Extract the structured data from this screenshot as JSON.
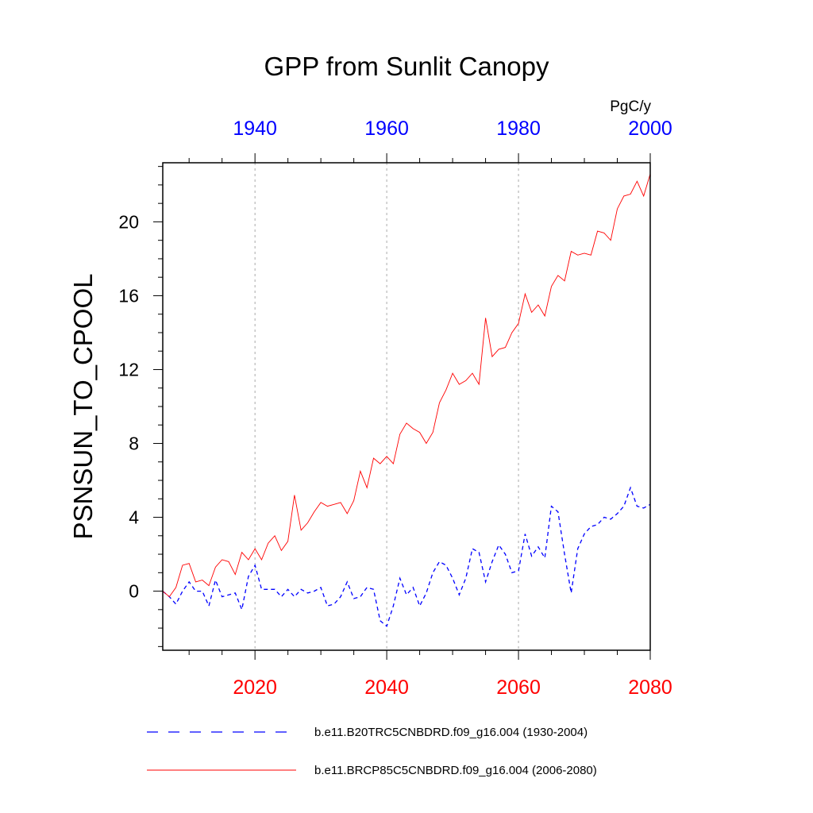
{
  "chart_data": {
    "type": "line",
    "title": "GPP from Sunlit Canopy",
    "ylabel": "PSNSUN_TO_CPOOL",
    "units": "PgC/y",
    "ylim": [
      -3.2,
      23.2
    ],
    "yticks": [
      0,
      4,
      8,
      12,
      16,
      20
    ],
    "bottom_axis": {
      "range": [
        2006,
        2080
      ],
      "ticks": [
        "2020",
        "2040",
        "2060",
        "2080"
      ],
      "tick_values": [
        2020,
        2040,
        2060,
        2080
      ],
      "color": "#ff0000"
    },
    "top_axis": {
      "range": [
        1926,
        2000
      ],
      "ticks": [
        "1940",
        "1960",
        "1980",
        "2000"
      ],
      "tick_values": [
        1940,
        1960,
        1980,
        2000
      ],
      "color": "#0000ff"
    },
    "vertical_gridlines": [
      2020,
      2040,
      2060
    ],
    "series": [
      {
        "name": "b.e11.B20TRC5CNBDRD.f09_g16.004 (1930-2004)",
        "axis": "top",
        "color": "#0000ff",
        "dash": "dashed",
        "x": [
          1926,
          1927,
          1928,
          1929,
          1930,
          1931,
          1932,
          1933,
          1934,
          1935,
          1936,
          1937,
          1938,
          1939,
          1940,
          1941,
          1942,
          1943,
          1944,
          1945,
          1946,
          1947,
          1948,
          1949,
          1950,
          1951,
          1952,
          1953,
          1954,
          1955,
          1956,
          1957,
          1958,
          1959,
          1960,
          1961,
          1962,
          1963,
          1964,
          1965,
          1966,
          1967,
          1968,
          1969,
          1970,
          1971,
          1972,
          1973,
          1974,
          1975,
          1976,
          1977,
          1978,
          1979,
          1980,
          1981,
          1982,
          1983,
          1984,
          1985,
          1986,
          1987,
          1988,
          1989,
          1990,
          1991,
          1992,
          1993,
          1994,
          1995,
          1996,
          1997,
          1998,
          1999,
          2000
        ],
        "values": [
          0.0,
          -0.3,
          -0.7,
          0.0,
          0.5,
          0.0,
          0.0,
          -0.8,
          0.6,
          -0.3,
          -0.2,
          -0.1,
          -1.0,
          0.8,
          1.4,
          0.1,
          0.1,
          0.1,
          -0.3,
          0.1,
          -0.3,
          0.1,
          -0.1,
          0.0,
          0.2,
          -0.8,
          -0.7,
          -0.3,
          0.5,
          -0.4,
          -0.3,
          0.2,
          0.1,
          -1.6,
          -1.9,
          -0.8,
          0.7,
          -0.2,
          0.2,
          -0.8,
          -0.1,
          1.0,
          1.6,
          1.4,
          0.7,
          -0.2,
          0.7,
          2.3,
          2.1,
          0.5,
          1.6,
          2.5,
          2.0,
          1.0,
          1.1,
          3.1,
          1.9,
          2.4,
          1.8,
          4.6,
          4.3,
          2.0,
          -0.1,
          2.3,
          3.1,
          3.5,
          3.6,
          4.0,
          3.9,
          4.2,
          4.6,
          5.6,
          4.6,
          4.5,
          4.7
        ]
      },
      {
        "name": "b.e11.BRCP85C5CNBDRD.f09_g16.004 (2006-2080)",
        "axis": "bottom",
        "color": "#ff0000",
        "dash": "solid",
        "x": [
          2006,
          2007,
          2008,
          2009,
          2010,
          2011,
          2012,
          2013,
          2014,
          2015,
          2016,
          2017,
          2018,
          2019,
          2020,
          2021,
          2022,
          2023,
          2024,
          2025,
          2026,
          2027,
          2028,
          2029,
          2030,
          2031,
          2032,
          2033,
          2034,
          2035,
          2036,
          2037,
          2038,
          2039,
          2040,
          2041,
          2042,
          2043,
          2044,
          2045,
          2046,
          2047,
          2048,
          2049,
          2050,
          2051,
          2052,
          2053,
          2054,
          2055,
          2056,
          2057,
          2058,
          2059,
          2060,
          2061,
          2062,
          2063,
          2064,
          2065,
          2066,
          2067,
          2068,
          2069,
          2070,
          2071,
          2072,
          2073,
          2074,
          2075,
          2076,
          2077,
          2078,
          2079,
          2080
        ],
        "values": [
          0.0,
          -0.3,
          0.2,
          1.4,
          1.5,
          0.5,
          0.6,
          0.3,
          1.3,
          1.7,
          1.6,
          0.9,
          2.1,
          1.7,
          2.3,
          1.7,
          2.6,
          3.0,
          2.2,
          2.7,
          5.2,
          3.3,
          3.7,
          4.3,
          4.8,
          4.6,
          4.7,
          4.8,
          4.2,
          4.9,
          6.5,
          5.6,
          7.2,
          6.9,
          7.3,
          6.9,
          8.5,
          9.1,
          8.8,
          8.6,
          8.0,
          8.6,
          10.2,
          10.9,
          11.8,
          11.2,
          11.4,
          11.8,
          11.2,
          14.8,
          12.7,
          13.1,
          13.2,
          14.0,
          14.5,
          16.1,
          15.1,
          15.5,
          14.9,
          16.5,
          17.1,
          16.8,
          18.4,
          18.2,
          18.3,
          18.2,
          19.5,
          19.4,
          19.0,
          20.7,
          21.4,
          21.5,
          22.2,
          21.4,
          22.6
        ]
      }
    ]
  }
}
